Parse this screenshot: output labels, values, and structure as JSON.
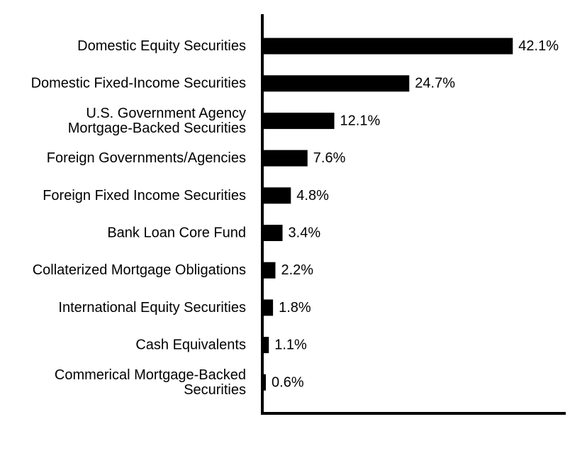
{
  "chart_data": {
    "type": "bar",
    "orientation": "horizontal",
    "categories": [
      "Domestic Equity Securities",
      "Domestic Fixed-Income Securities",
      "U.S. Government Agency Mortgage-Backed Securities",
      "Foreign Governments/Agencies",
      "Foreign Fixed Income Securities",
      "Bank Loan Core Fund",
      "Collaterized Mortgage Obligations",
      "International Equity Securities",
      "Cash Equivalents",
      "Commerical Mortgage-Backed Securities"
    ],
    "category_lines": [
      [
        "Domestic Equity Securities"
      ],
      [
        "Domestic Fixed-Income Securities"
      ],
      [
        "U.S. Government Agency",
        "Mortgage-Backed Securities"
      ],
      [
        "Foreign Governments/Agencies"
      ],
      [
        "Foreign Fixed Income Securities"
      ],
      [
        "Bank Loan Core Fund"
      ],
      [
        "Collaterized Mortgage Obligations"
      ],
      [
        "International Equity Securities"
      ],
      [
        "Cash Equivalents"
      ],
      [
        "Commerical Mortgage-Backed",
        "Securities"
      ]
    ],
    "values": [
      42.1,
      24.7,
      12.1,
      7.6,
      4.8,
      3.4,
      2.2,
      1.8,
      1.1,
      0.6
    ],
    "value_labels": [
      "42.1%",
      "24.7%",
      "12.1%",
      "7.6%",
      "4.8%",
      "3.4%",
      "2.2%",
      "1.8%",
      "1.1%",
      "0.6%"
    ],
    "title": "",
    "xlabel": "",
    "ylabel": "",
    "xlim": [
      0,
      51
    ],
    "grid": false,
    "bar_color": "#000000"
  }
}
